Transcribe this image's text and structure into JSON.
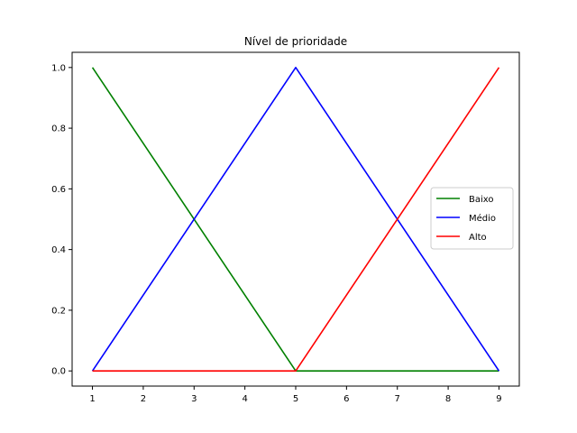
{
  "chart_data": {
    "type": "line",
    "title": "Nível de prioridade",
    "xlabel": "",
    "ylabel": "",
    "xlim": [
      0.6,
      9.4
    ],
    "ylim": [
      -0.05,
      1.05
    ],
    "xticks": [
      1,
      2,
      3,
      4,
      5,
      6,
      7,
      8,
      9
    ],
    "yticks": [
      0.0,
      0.2,
      0.4,
      0.6,
      0.8,
      1.0
    ],
    "ytick_labels": [
      "0.0",
      "0.2",
      "0.4",
      "0.6",
      "0.8",
      "1.0"
    ],
    "grid": false,
    "legend_position": "right",
    "series": [
      {
        "name": "Baixo",
        "color": "#008000",
        "x": [
          1,
          5,
          9
        ],
        "y": [
          1.0,
          0.0,
          0.0
        ]
      },
      {
        "name": "Médio",
        "color": "#0000ff",
        "x": [
          1,
          5,
          9
        ],
        "y": [
          0.0,
          1.0,
          0.0
        ]
      },
      {
        "name": "Alto",
        "color": "#ff0000",
        "x": [
          1,
          5,
          9
        ],
        "y": [
          0.0,
          0.0,
          1.0
        ]
      }
    ]
  }
}
